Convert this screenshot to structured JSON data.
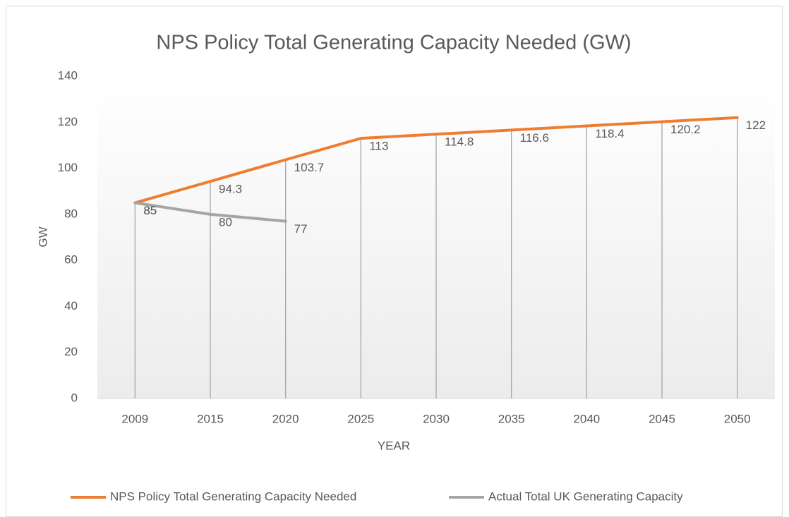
{
  "chart_data": {
    "type": "line",
    "title": "NPS Policy Total Generating Capacity Needed (GW)",
    "x_label": "YEAR",
    "y_label": "GW",
    "categories": [
      "2009",
      "2015",
      "2020",
      "2025",
      "2030",
      "2035",
      "2040",
      "2045",
      "2050"
    ],
    "series": [
      {
        "name": "NPS Policy Total Generating Capacity Needed",
        "color": "#ed7d31",
        "values": [
          85,
          94.3,
          103.7,
          113,
          114.8,
          116.6,
          118.4,
          120.2,
          122
        ]
      },
      {
        "name": "Actual Total UK Generating Capacity",
        "color": "#a5a5a5",
        "values": [
          85,
          80,
          77,
          null,
          null,
          null,
          null,
          null,
          null
        ]
      }
    ],
    "ylim": [
      0,
      140
    ],
    "yticks": [
      0,
      20,
      40,
      60,
      80,
      100,
      120,
      140
    ],
    "grid": false,
    "drop_lines": true,
    "legend": "bottom"
  }
}
